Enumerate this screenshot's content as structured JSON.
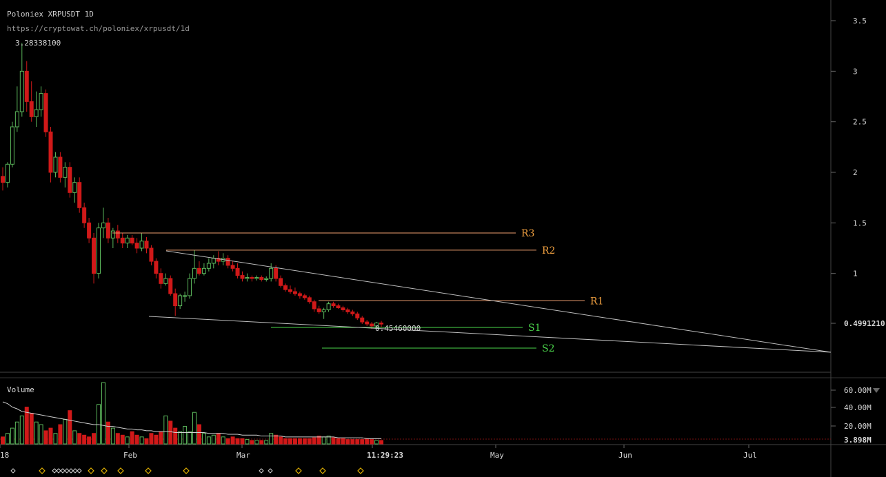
{
  "header": {
    "title": "Poloniex XRPUSDT 1D",
    "url": "https://cryptowat.ch/poloniex/xrpusdt/1d"
  },
  "price_axis": {
    "ticks": [
      {
        "value": 3.5,
        "label": "3.5"
      },
      {
        "value": 3,
        "label": "3"
      },
      {
        "value": 2.5,
        "label": "2.5"
      },
      {
        "value": 2,
        "label": "2"
      },
      {
        "value": 1.5,
        "label": "1.5"
      },
      {
        "value": 1,
        "label": "1"
      }
    ],
    "current_label": "0.4991210",
    "high_label": "3.28338100",
    "low_label": "0.45460000"
  },
  "volume_axis": {
    "title": "Volume",
    "ticks": [
      "60.00M",
      "40.00M",
      "20.00M"
    ],
    "current_label": "3.898M"
  },
  "time_axis": {
    "labels": [
      "18",
      "Feb",
      "Mar",
      "11:29:23",
      "May",
      "Jun",
      "Jul"
    ]
  },
  "colors": {
    "up": "#5cb85c",
    "down": "#d01919",
    "resistance": "#f0a070",
    "resistance_text": "#f0a040",
    "support": "#4cd84c",
    "trendline": "#bdbdbd",
    "volume_ma": "#cfcfcf",
    "marker": "#e0b000"
  },
  "annotations": {
    "resistance": [
      {
        "label": "R3",
        "price": 1.4
      },
      {
        "label": "R2",
        "price": 1.23
      },
      {
        "label": "R1",
        "price": 0.73
      }
    ],
    "support": [
      {
        "label": "S1",
        "price": 0.48
      },
      {
        "label": "S2",
        "price": 0.27
      }
    ]
  },
  "chart_data": {
    "type": "candlestick",
    "title": "Poloniex XRPUSDT 1D",
    "ylim": [
      0.2,
      3.6
    ],
    "volume_ylim": [
      0,
      70
    ],
    "candles": [
      [
        1.96,
        2.05,
        1.82,
        1.9
      ],
      [
        1.9,
        2.1,
        1.85,
        2.08
      ],
      [
        2.08,
        2.5,
        2.05,
        2.45
      ],
      [
        2.45,
        2.85,
        2.4,
        2.6
      ],
      [
        2.6,
        3.28,
        2.55,
        3.0
      ],
      [
        3.0,
        3.1,
        2.6,
        2.7
      ],
      [
        2.7,
        2.9,
        2.5,
        2.55
      ],
      [
        2.55,
        2.8,
        2.45,
        2.62
      ],
      [
        2.62,
        2.85,
        2.55,
        2.78
      ],
      [
        2.78,
        2.82,
        2.35,
        2.4
      ],
      [
        2.4,
        2.45,
        1.9,
        2.0
      ],
      [
        2.0,
        2.2,
        1.95,
        2.15
      ],
      [
        2.15,
        2.2,
        1.9,
        1.95
      ],
      [
        1.95,
        2.1,
        1.85,
        2.05
      ],
      [
        2.05,
        2.1,
        1.75,
        1.8
      ],
      [
        1.8,
        1.95,
        1.7,
        1.9
      ],
      [
        1.9,
        1.95,
        1.6,
        1.65
      ],
      [
        1.65,
        1.7,
        1.45,
        1.5
      ],
      [
        1.5,
        1.55,
        1.3,
        1.35
      ],
      [
        1.35,
        1.4,
        0.9,
        1.0
      ],
      [
        1.0,
        1.5,
        0.95,
        1.45
      ],
      [
        1.45,
        1.65,
        1.35,
        1.5
      ],
      [
        1.5,
        1.55,
        1.3,
        1.35
      ],
      [
        1.35,
        1.45,
        1.25,
        1.42
      ],
      [
        1.42,
        1.48,
        1.3,
        1.35
      ],
      [
        1.35,
        1.4,
        1.25,
        1.3
      ],
      [
        1.3,
        1.38,
        1.25,
        1.35
      ],
      [
        1.35,
        1.38,
        1.28,
        1.3
      ],
      [
        1.3,
        1.35,
        1.2,
        1.25
      ],
      [
        1.25,
        1.4,
        1.22,
        1.32
      ],
      [
        1.32,
        1.36,
        1.2,
        1.25
      ],
      [
        1.25,
        1.28,
        1.08,
        1.12
      ],
      [
        1.12,
        1.15,
        0.95,
        1.0
      ],
      [
        1.0,
        1.05,
        0.85,
        0.9
      ],
      [
        0.9,
        1.0,
        0.88,
        0.95
      ],
      [
        0.95,
        0.98,
        0.78,
        0.8
      ],
      [
        0.8,
        0.85,
        0.58,
        0.68
      ],
      [
        0.68,
        0.8,
        0.65,
        0.78
      ],
      [
        0.78,
        0.82,
        0.72,
        0.78
      ],
      [
        0.78,
        1.0,
        0.75,
        0.95
      ],
      [
        0.95,
        1.23,
        0.9,
        1.05
      ],
      [
        1.05,
        1.12,
        0.98,
        1.0
      ],
      [
        1.0,
        1.1,
        0.98,
        1.05
      ],
      [
        1.05,
        1.15,
        1.02,
        1.1
      ],
      [
        1.1,
        1.18,
        1.05,
        1.15
      ],
      [
        1.15,
        1.22,
        1.08,
        1.12
      ],
      [
        1.12,
        1.2,
        1.08,
        1.15
      ],
      [
        1.15,
        1.18,
        1.05,
        1.08
      ],
      [
        1.08,
        1.12,
        1.02,
        1.05
      ],
      [
        1.05,
        1.1,
        0.95,
        0.98
      ],
      [
        0.98,
        1.02,
        0.92,
        0.95
      ],
      [
        0.95,
        1.0,
        0.92,
        0.96
      ],
      [
        0.96,
        0.98,
        0.92,
        0.95
      ],
      [
        0.95,
        0.98,
        0.93,
        0.96
      ],
      [
        0.96,
        0.98,
        0.92,
        0.94
      ],
      [
        0.94,
        0.97,
        0.92,
        0.95
      ],
      [
        0.95,
        1.1,
        0.92,
        1.05
      ],
      [
        1.05,
        1.08,
        0.92,
        0.95
      ],
      [
        0.95,
        0.98,
        0.86,
        0.88
      ],
      [
        0.88,
        0.9,
        0.82,
        0.84
      ],
      [
        0.84,
        0.88,
        0.8,
        0.82
      ],
      [
        0.82,
        0.86,
        0.78,
        0.8
      ],
      [
        0.8,
        0.82,
        0.75,
        0.78
      ],
      [
        0.78,
        0.8,
        0.74,
        0.76
      ],
      [
        0.76,
        0.78,
        0.7,
        0.72
      ],
      [
        0.72,
        0.74,
        0.62,
        0.65
      ],
      [
        0.65,
        0.68,
        0.6,
        0.62
      ],
      [
        0.62,
        0.66,
        0.55,
        0.64
      ],
      [
        0.64,
        0.72,
        0.62,
        0.7
      ],
      [
        0.7,
        0.72,
        0.66,
        0.68
      ],
      [
        0.68,
        0.7,
        0.65,
        0.66
      ],
      [
        0.66,
        0.68,
        0.62,
        0.64
      ],
      [
        0.64,
        0.66,
        0.6,
        0.62
      ],
      [
        0.62,
        0.64,
        0.58,
        0.6
      ],
      [
        0.6,
        0.62,
        0.54,
        0.56
      ],
      [
        0.56,
        0.58,
        0.5,
        0.52
      ],
      [
        0.52,
        0.54,
        0.48,
        0.5
      ],
      [
        0.5,
        0.52,
        0.45,
        0.48
      ],
      [
        0.48,
        0.52,
        0.46,
        0.51
      ],
      [
        0.51,
        0.53,
        0.47,
        0.499
      ]
    ],
    "volume": [
      8,
      12,
      18,
      25,
      32,
      42,
      35,
      25,
      22,
      15,
      18,
      12,
      22,
      28,
      38,
      15,
      12,
      10,
      8,
      12,
      45,
      70,
      25,
      18,
      12,
      10,
      8,
      14,
      10,
      8,
      6,
      12,
      10,
      14,
      32,
      26,
      18,
      14,
      20,
      14,
      36,
      22,
      12,
      8,
      10,
      12,
      8,
      6,
      8,
      6,
      6,
      5,
      4,
      4,
      4,
      4,
      12,
      10,
      8,
      6,
      6,
      6,
      6,
      6,
      6,
      7,
      9,
      8,
      9,
      7,
      6,
      6,
      5,
      5,
      5,
      5,
      6,
      5,
      4,
      4
    ],
    "volume_ma": [
      48,
      46,
      42,
      40,
      37,
      36,
      35,
      34,
      33,
      32,
      31,
      30,
      29,
      28,
      27,
      26,
      25,
      24,
      23,
      22,
      22,
      21,
      20,
      20,
      19,
      18,
      17,
      17,
      16,
      16,
      15,
      15,
      14,
      14,
      14,
      14,
      13,
      13,
      13,
      13,
      13,
      13,
      13,
      12,
      12,
      12,
      12,
      11,
      11,
      11,
      10,
      10,
      10,
      10,
      9,
      9,
      9,
      9,
      9,
      8,
      8,
      8,
      8,
      8,
      8,
      8,
      8,
      8,
      8,
      8,
      7,
      7,
      7,
      7,
      7,
      7,
      6,
      6,
      6,
      6
    ]
  }
}
